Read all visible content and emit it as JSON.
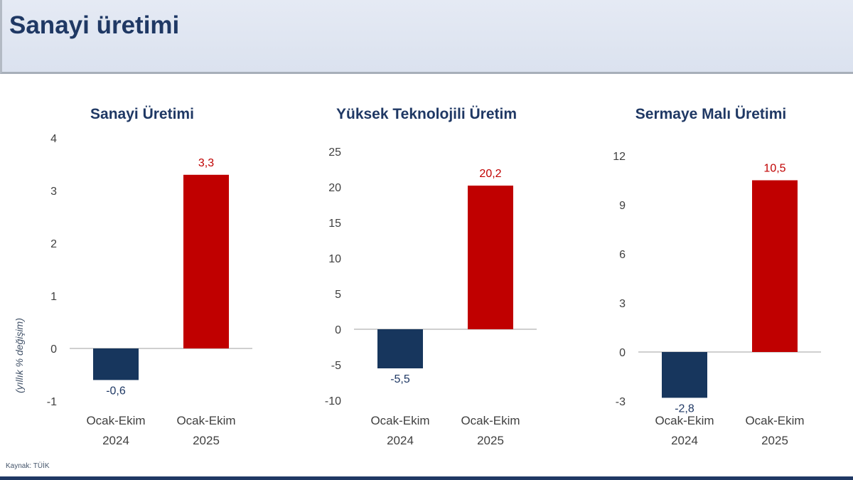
{
  "header": {
    "title": "Sanayi üretimi"
  },
  "footer": {
    "source": "Kaynak: TÜİK"
  },
  "palette": {
    "header_bg": "#dbe2ef",
    "header_bg_light": "#e5eaf4",
    "header_text": "#1f3864",
    "negative_bar": "#17365d",
    "positive_bar": "#c00000",
    "negative_label": "#1f3864",
    "positive_label": "#c00000",
    "tick_text": "#3f3f3f",
    "category_text": "#404040",
    "axis_line": "#bfbfbf"
  },
  "chart_data": [
    {
      "type": "bar",
      "title": "Sanayi Üretimi",
      "ylabel": "(yıllık % değişim)",
      "categories": [
        "Ocak-Ekim 2024",
        "Ocak-Ekim 2025"
      ],
      "values": [
        -0.6,
        3.3
      ],
      "value_labels": [
        "-0,6",
        "3,3"
      ],
      "ylim": [
        -1,
        4
      ],
      "tick_step": 1,
      "grid": false,
      "legend": "none"
    },
    {
      "type": "bar",
      "title": "Yüksek Teknolojili Üretim",
      "ylabel": "",
      "categories": [
        "Ocak-Ekim 2024",
        "Ocak-Ekim 2025"
      ],
      "values": [
        -5.5,
        20.2
      ],
      "value_labels": [
        "-5,5",
        "20,2"
      ],
      "ylim": [
        -10,
        25
      ],
      "tick_step": 5,
      "grid": false,
      "legend": "none"
    },
    {
      "type": "bar",
      "title": "Sermaye Malı Üretimi",
      "ylabel": "",
      "categories": [
        "Ocak-Ekim 2024",
        "Ocak-Ekim 2025"
      ],
      "values": [
        -2.8,
        10.5
      ],
      "value_labels": [
        "-2,8",
        "10,5"
      ],
      "ylim": [
        -3,
        12
      ],
      "tick_step": 3,
      "grid": false,
      "legend": "none"
    }
  ]
}
